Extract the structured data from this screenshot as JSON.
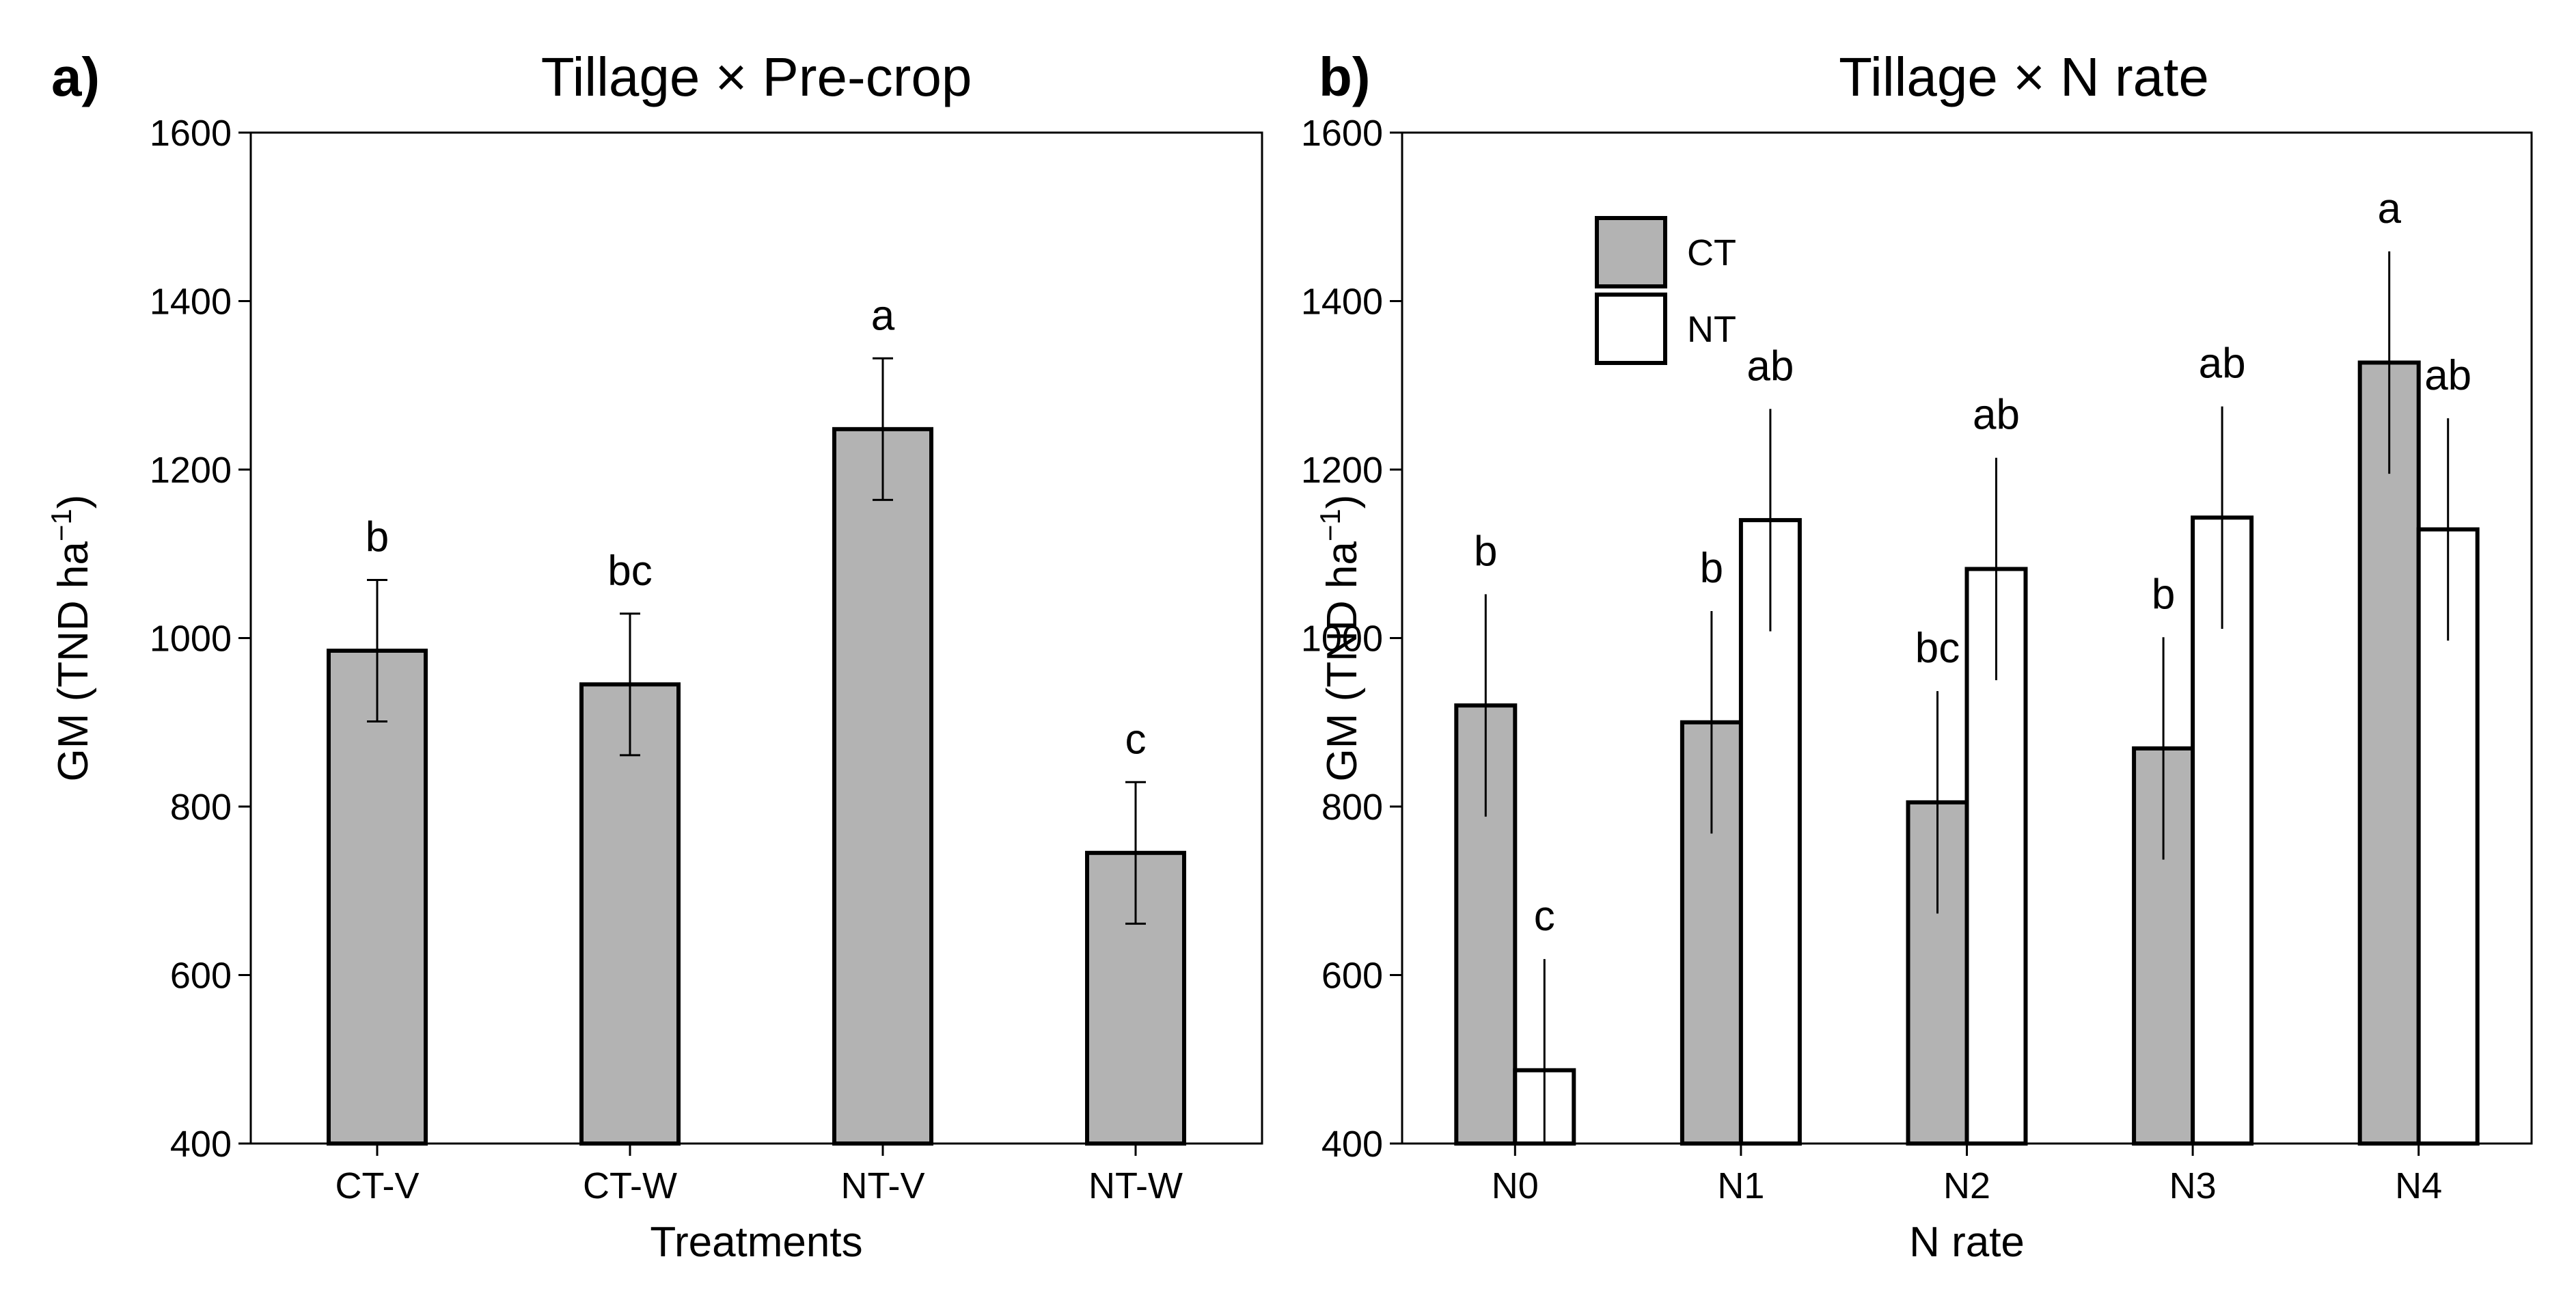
{
  "chart_data": [
    {
      "panel": "a)",
      "type": "bar",
      "title": "Tillage × Pre-crop",
      "xlabel": "Treatments",
      "ylabel": "GM (TND ha",
      "ylabel_sup": "−1",
      "ylabel_close": ")",
      "ylim": [
        400,
        1600
      ],
      "yticks": [
        "400",
        "600",
        "800",
        "1000",
        "1200",
        "1400",
        "1600"
      ],
      "categories": [
        "CT-V",
        "CT-W",
        "NT-V",
        "NT-W"
      ],
      "series": [
        {
          "name": "GM",
          "color": "#b3b3b3",
          "values": [
            985,
            945,
            1248,
            745
          ],
          "errors": [
            84,
            84,
            84,
            84
          ],
          "letters": [
            "b",
            "bc",
            "a",
            "c"
          ]
        }
      ]
    },
    {
      "panel": "b)",
      "type": "bar",
      "title": "Tillage × N rate",
      "xlabel": "N rate",
      "ylabel": "GM (TND ha",
      "ylabel_sup": "−1",
      "ylabel_close": ")",
      "ylim": [
        400,
        1600
      ],
      "yticks": [
        "400",
        "600",
        "800",
        "1000",
        "1200",
        "1400",
        "1600"
      ],
      "categories": [
        "N0",
        "N1",
        "N2",
        "N3",
        "N4"
      ],
      "legend_position": "top-left",
      "series": [
        {
          "name": "CT",
          "color": "#b3b3b3",
          "values": [
            920,
            900,
            805,
            869,
            1327
          ],
          "errors": [
            132,
            132,
            132,
            132,
            132
          ],
          "letters": [
            "b",
            "b",
            "bc",
            "b",
            "a"
          ]
        },
        {
          "name": "NT",
          "color": "#ffffff",
          "values": [
            487,
            1140,
            1082,
            1143,
            1129
          ],
          "errors": [
            132,
            132,
            132,
            132,
            132
          ],
          "letters": [
            "c",
            "ab",
            "ab",
            "ab",
            "ab"
          ]
        }
      ]
    }
  ]
}
